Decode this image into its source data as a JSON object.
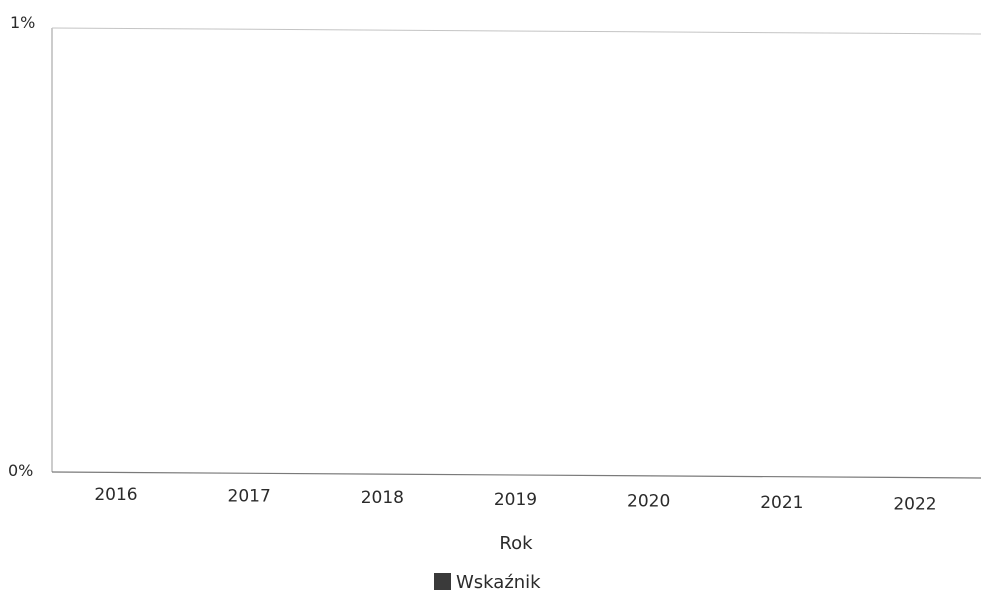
{
  "chart_data": {
    "type": "bar",
    "categories": [
      "2016",
      "2017",
      "2018",
      "2019",
      "2020",
      "2021",
      "2022"
    ],
    "series": [
      {
        "name": "Wskaźnik",
        "values": [
          0,
          0,
          0,
          0,
          0,
          0,
          0
        ],
        "color": "#3a3a3a"
      }
    ],
    "title": "",
    "xlabel": "Rok",
    "ylabel": "",
    "ylim": [
      0,
      1
    ],
    "yticks": [
      "0%",
      "1%"
    ],
    "grid": false,
    "legend_position": "bottom-center"
  }
}
